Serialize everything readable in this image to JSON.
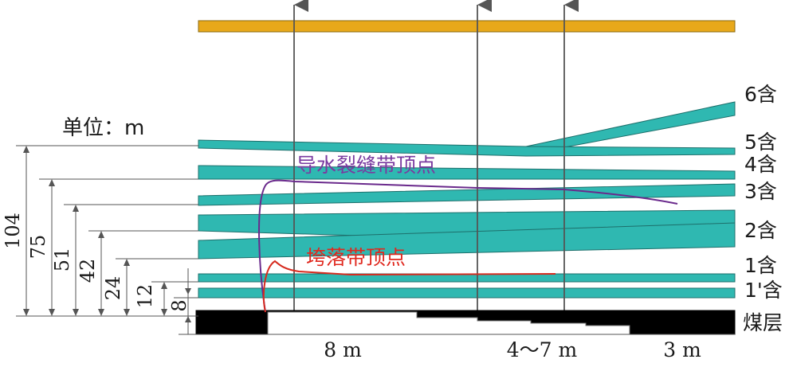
{
  "unit_label": "单位：m",
  "colors": {
    "aquifer": "#2fb8b1",
    "aquifer_stroke": "#1d6f6b",
    "top_bar": "#e8a81a",
    "line": "#555555",
    "fracture_curve": "#6a2a8c",
    "caving_curve": "#d62a1e",
    "fracture_text": "#7a3aa0",
    "caving_text": "#e0281e"
  },
  "aquifer_labels": [
    "6含",
    "5含",
    "4含",
    "3含",
    "2含",
    "1含",
    "1'含"
  ],
  "coal_label": "煤层",
  "fracture_zone_label": "导水裂缝带顶点",
  "caving_zone_label": "垮落带顶点",
  "heights": [
    "104",
    "75",
    "51",
    "42",
    "24",
    "12",
    "8"
  ],
  "bottom_labels": [
    "8 m",
    "4～7 m",
    "3 m"
  ]
}
